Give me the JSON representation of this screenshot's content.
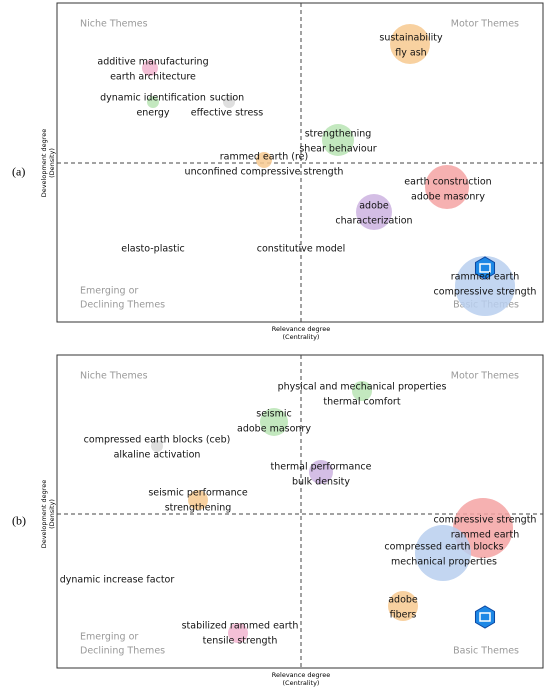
{
  "panels": [
    {
      "label": "(a)",
      "quadrants": {
        "niche": "Niche Themes",
        "motor": "Motor Themes",
        "emerging": [
          "Emerging or",
          "Declining Themes"
        ],
        "basic": "Basic Themes"
      },
      "x_axis": [
        "Relevance degree",
        "(Centrality)"
      ],
      "y_axis": [
        "Development degree",
        "(Density)"
      ],
      "clusters": [
        [
          "sustainability",
          "fly ash"
        ],
        [
          "additive manufacturing",
          "earth architecture"
        ],
        [
          "dynamic identification",
          "energy"
        ],
        [
          "suction",
          "effective stress"
        ],
        [
          "strengthening",
          "shear behaviour"
        ],
        [
          "rammed earth (re)",
          "unconfined compressive strength"
        ],
        [
          "earth construction",
          "adobe masonry"
        ],
        [
          "adobe",
          "characterization"
        ],
        [
          "elasto-plastic"
        ],
        [
          "constitutive model"
        ],
        [
          "rammed earth",
          "compressive strength"
        ]
      ]
    },
    {
      "label": "(b)",
      "quadrants": {
        "niche": "Niche Themes",
        "motor": "Motor Themes",
        "emerging": [
          "Emerging or",
          "Declining Themes"
        ],
        "basic": "Basic Themes"
      },
      "x_axis": [
        "Relevance degree",
        "(Centrality)"
      ],
      "y_axis": [
        "Development degree",
        "(Density)"
      ],
      "clusters": [
        [
          "physical and mechanical properties",
          "thermal comfort"
        ],
        [
          "seismic",
          "adobe masonry"
        ],
        [
          "compressed earth blocks (ceb)",
          "alkaline activation"
        ],
        [
          "thermal performance",
          "bulk density"
        ],
        [
          "seismic performance",
          "strengthening"
        ],
        [
          "compressive strength",
          "rammed earth"
        ],
        [
          "compressed earth blocks",
          "mechanical properties"
        ],
        [
          "dynamic increase factor"
        ],
        [
          "adobe",
          "fibers"
        ],
        [
          "stabilized rammed earth",
          "tensile strength"
        ]
      ]
    }
  ]
}
